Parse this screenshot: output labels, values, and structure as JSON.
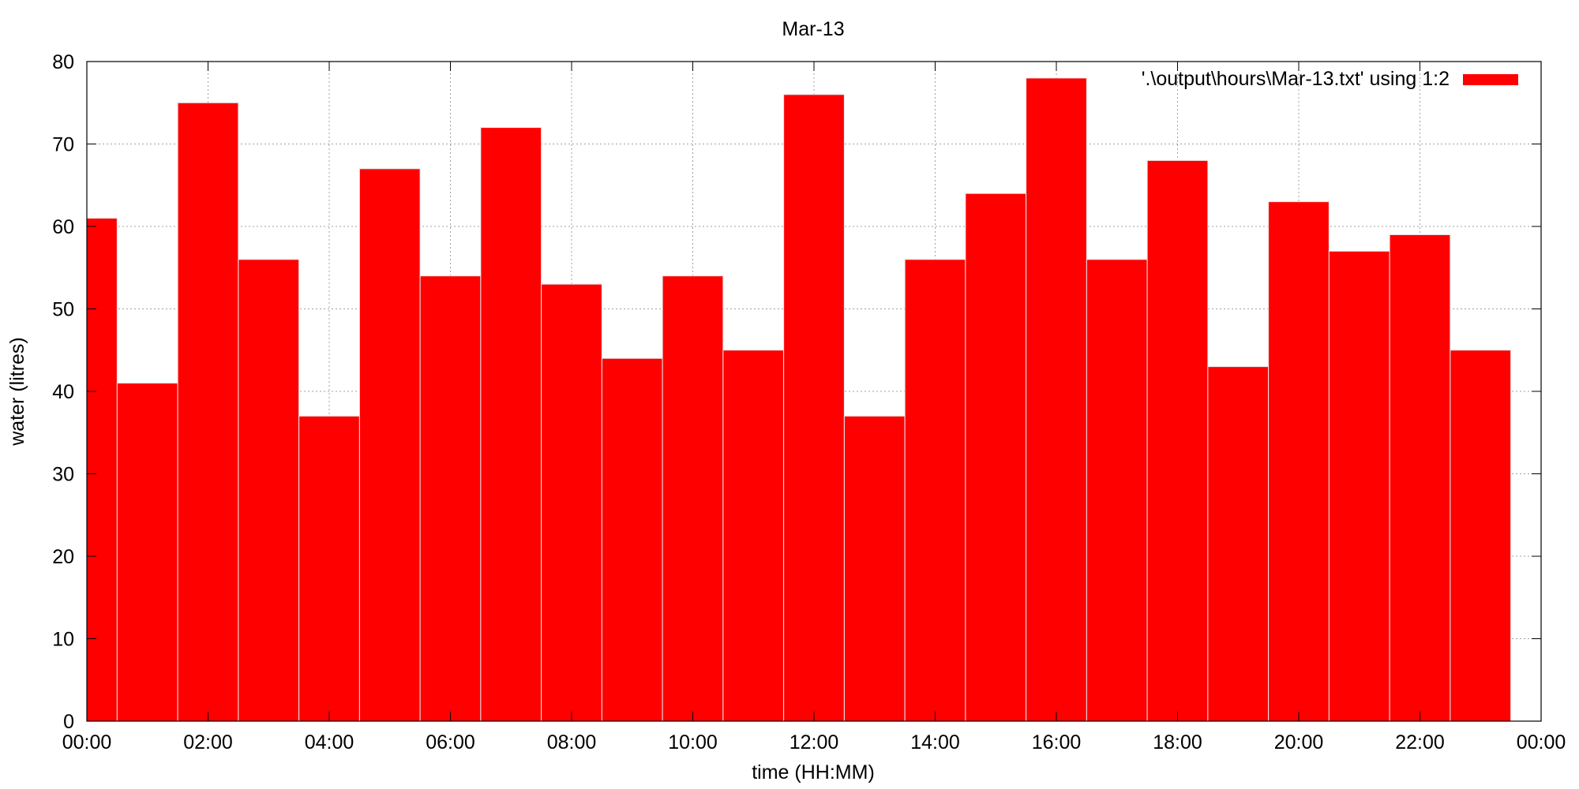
{
  "chart_data": {
    "type": "bar",
    "title": "Mar-13",
    "xlabel": "time (HH:MM)",
    "ylabel": "water (litres)",
    "x_unit": "hour of day",
    "xlim": [
      0,
      24
    ],
    "ylim": [
      0,
      80
    ],
    "x_ticks": [
      0,
      2,
      4,
      6,
      8,
      10,
      12,
      14,
      16,
      18,
      20,
      22,
      24
    ],
    "x_tick_labels": [
      "00:00",
      "02:00",
      "04:00",
      "06:00",
      "08:00",
      "10:00",
      "12:00",
      "14:00",
      "16:00",
      "18:00",
      "20:00",
      "22:00",
      "00:00"
    ],
    "y_ticks": [
      0,
      10,
      20,
      30,
      40,
      50,
      60,
      70,
      80
    ],
    "y_tick_labels": [
      "0",
      "10",
      "20",
      "30",
      "40",
      "50",
      "60",
      "70",
      "80"
    ],
    "grid": true,
    "legend_position": "top-right",
    "bar_color": "#ff0000",
    "bar_edge_color": "#e8e8e8",
    "series": [
      {
        "name": "'.\\output\\hours\\Mar-13.txt' using 1:2",
        "x": [
          0,
          1,
          2,
          3,
          4,
          5,
          6,
          7,
          8,
          9,
          10,
          11,
          12,
          13,
          14,
          15,
          16,
          17,
          18,
          19,
          20,
          21,
          22,
          23
        ],
        "values": [
          61,
          41,
          75,
          56,
          37,
          67,
          54,
          72,
          53,
          44,
          54,
          45,
          76,
          37,
          56,
          64,
          78,
          56,
          68,
          43,
          63,
          57,
          59,
          45
        ]
      }
    ]
  }
}
